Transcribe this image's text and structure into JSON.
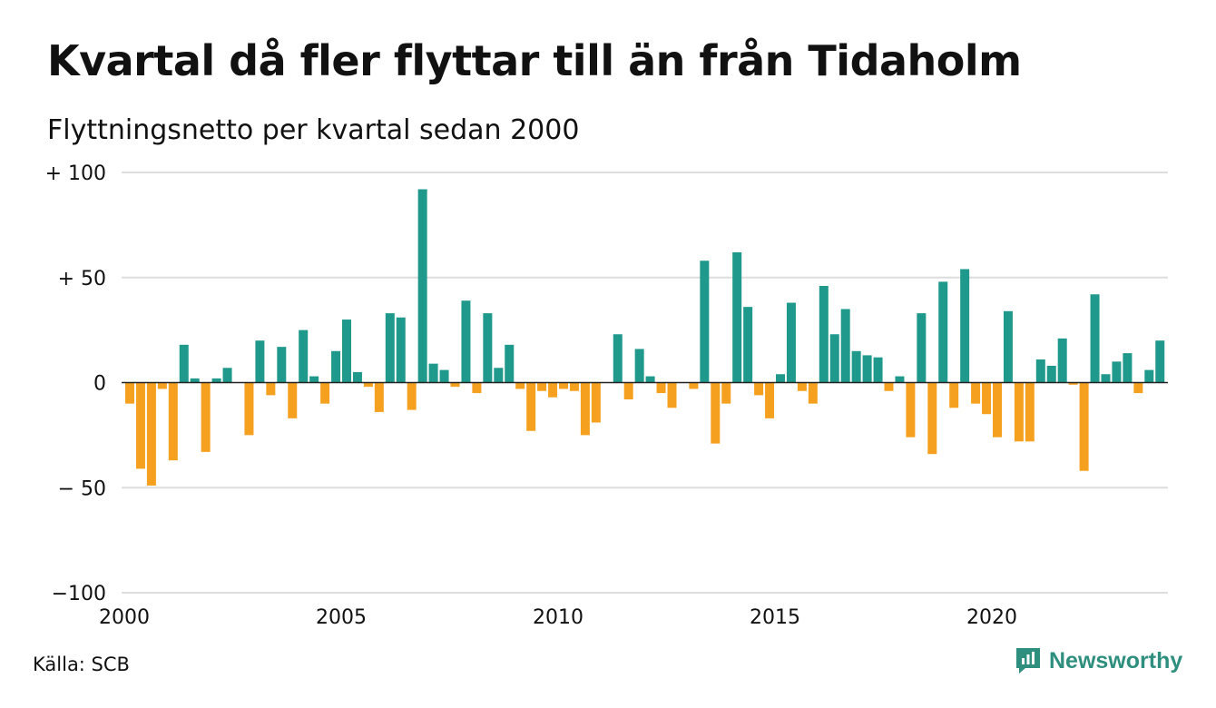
{
  "header": {
    "title": "Kvartal då fler flyttar till än från Tidaholm",
    "subtitle": "Flyttningsnetto per kvartal sedan 2000"
  },
  "footer": {
    "source": "Källa: SCB",
    "brand": "Newsworthy",
    "brand_icon": "newsworthy-logo-icon"
  },
  "colors": {
    "positive": "#1f998b",
    "negative": "#f5a11f",
    "grid": "#dddddd",
    "brand": "#2f8f7f"
  },
  "chart_data": {
    "type": "bar",
    "title": "Kvartal då fler flyttar till än från Tidaholm",
    "subtitle": "Flyttningsnetto per kvartal sedan 2000",
    "xlabel": "",
    "ylabel": "",
    "ylim": [
      -100,
      100
    ],
    "y_ticks": [
      {
        "value": 100,
        "label": "+ 100"
      },
      {
        "value": 50,
        "label": "+  50"
      },
      {
        "value": 0,
        "label": "0"
      },
      {
        "value": -50,
        "label": "− 50"
      },
      {
        "value": -100,
        "label": "−100"
      }
    ],
    "x_ticks": [
      "2000",
      "2005",
      "2010",
      "2015",
      "2020"
    ],
    "x_range": [
      "2000 Q1",
      "2024 Q1"
    ],
    "grid": true,
    "legend": "none",
    "categories": [
      "2000 Q1",
      "2000 Q2",
      "2000 Q3",
      "2000 Q4",
      "2001 Q1",
      "2001 Q2",
      "2001 Q3",
      "2001 Q4",
      "2002 Q1",
      "2002 Q2",
      "2002 Q3",
      "2002 Q4",
      "2003 Q1",
      "2003 Q2",
      "2003 Q3",
      "2003 Q4",
      "2004 Q1",
      "2004 Q2",
      "2004 Q3",
      "2004 Q4",
      "2005 Q1",
      "2005 Q2",
      "2005 Q3",
      "2005 Q4",
      "2006 Q1",
      "2006 Q2",
      "2006 Q3",
      "2006 Q4",
      "2007 Q1",
      "2007 Q2",
      "2007 Q3",
      "2007 Q4",
      "2008 Q1",
      "2008 Q2",
      "2008 Q3",
      "2008 Q4",
      "2009 Q1",
      "2009 Q2",
      "2009 Q3",
      "2009 Q4",
      "2010 Q1",
      "2010 Q2",
      "2010 Q3",
      "2010 Q4",
      "2011 Q1",
      "2011 Q2",
      "2011 Q3",
      "2011 Q4",
      "2012 Q1",
      "2012 Q2",
      "2012 Q3",
      "2012 Q4",
      "2013 Q1",
      "2013 Q2",
      "2013 Q3",
      "2013 Q4",
      "2014 Q1",
      "2014 Q2",
      "2014 Q3",
      "2014 Q4",
      "2015 Q1",
      "2015 Q2",
      "2015 Q3",
      "2015 Q4",
      "2016 Q1",
      "2016 Q2",
      "2016 Q3",
      "2016 Q4",
      "2017 Q1",
      "2017 Q2",
      "2017 Q3",
      "2017 Q4",
      "2018 Q1",
      "2018 Q2",
      "2018 Q3",
      "2018 Q4",
      "2019 Q1",
      "2019 Q2",
      "2019 Q3",
      "2019 Q4",
      "2020 Q1",
      "2020 Q2",
      "2020 Q3",
      "2020 Q4",
      "2021 Q1",
      "2021 Q2",
      "2021 Q3",
      "2021 Q4",
      "2022 Q1",
      "2022 Q2",
      "2022 Q3",
      "2022 Q4",
      "2023 Q1",
      "2023 Q2",
      "2023 Q3",
      "2023 Q4",
      "2024 Q1"
    ],
    "values": [
      -10,
      -41,
      -49,
      -3,
      -37,
      18,
      2,
      -33,
      2,
      7,
      0,
      -25,
      20,
      -6,
      17,
      -17,
      25,
      3,
      -10,
      15,
      30,
      5,
      -2,
      -14,
      33,
      31,
      -13,
      92,
      9,
      6,
      -2,
      39,
      -5,
      33,
      7,
      18,
      -3,
      -23,
      -4,
      -7,
      -3,
      -4,
      -25,
      -19,
      0,
      23,
      -8,
      16,
      3,
      -5,
      -12,
      0,
      -3,
      58,
      -29,
      -10,
      62,
      36,
      -6,
      -17,
      4,
      38,
      -4,
      -10,
      46,
      23,
      35,
      15,
      13,
      12,
      -4,
      3,
      -26,
      33,
      -34,
      48,
      -12,
      54,
      -10,
      -15,
      -26,
      34,
      -28,
      -28,
      11,
      8,
      21,
      -1,
      -42,
      42,
      4,
      10,
      14,
      -5,
      6,
      20,
      0
    ]
  }
}
